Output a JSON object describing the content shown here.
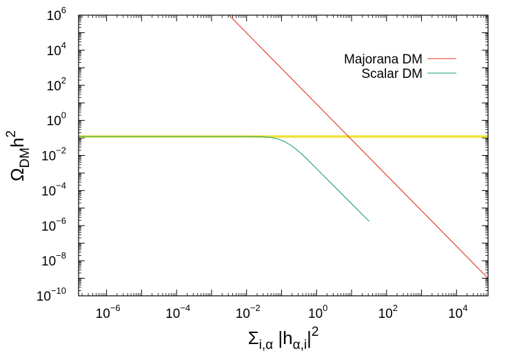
{
  "chart_data": {
    "type": "line",
    "scale": "log-log",
    "x_axis": {
      "range_log10": [
        -6.8,
        4.9
      ],
      "ticks": [
        {
          "base": "10",
          "exp": "−6",
          "log10": -6
        },
        {
          "base": "10",
          "exp": "−4",
          "log10": -4
        },
        {
          "base": "10",
          "exp": "−2",
          "log10": -2
        },
        {
          "base": "10",
          "exp": "0",
          "log10": 0
        },
        {
          "base": "10",
          "exp": "2",
          "log10": 2
        },
        {
          "base": "10",
          "exp": "4",
          "log10": 4
        }
      ],
      "label": {
        "main": "Σ",
        "sub": "i,α",
        "mid": " |h",
        "sub2": "α,i",
        "close": "|",
        "sup": "2"
      }
    },
    "y_axis": {
      "range_log10": [
        -10,
        6
      ],
      "ticks": [
        {
          "base": "10",
          "exp": "−10",
          "log10": -10
        },
        {
          "base": "10",
          "exp": "−8",
          "log10": -8
        },
        {
          "base": "10",
          "exp": "−6",
          "log10": -6
        },
        {
          "base": "10",
          "exp": "−4",
          "log10": -4
        },
        {
          "base": "10",
          "exp": "−2",
          "log10": -2
        },
        {
          "base": "10",
          "exp": "0",
          "log10": 0
        },
        {
          "base": "10",
          "exp": "2",
          "log10": 2
        },
        {
          "base": "10",
          "exp": "4",
          "log10": 4
        },
        {
          "base": "10",
          "exp": "6",
          "log10": 6
        }
      ],
      "label": {
        "main": "Ω",
        "sub": "DM",
        "mid": "h",
        "sup": "2"
      }
    },
    "series": [
      {
        "name": "Majorana DM",
        "color": "#e0301e",
        "points_log10": [
          [
            -2.5,
            6.0
          ],
          [
            4.9,
            -9.0
          ]
        ]
      },
      {
        "name": "Scalar DM",
        "color": "#1a9e77",
        "points_log10": [
          [
            -6.8,
            -0.92
          ],
          [
            -3.0,
            -0.92
          ],
          [
            -2.0,
            -0.92
          ],
          [
            -1.6,
            -0.93
          ],
          [
            -1.3,
            -0.97
          ],
          [
            -1.1,
            -1.06
          ],
          [
            -0.9,
            -1.22
          ],
          [
            -0.7,
            -1.46
          ],
          [
            -0.5,
            -1.78
          ],
          [
            -0.3,
            -2.15
          ],
          [
            0.0,
            -2.75
          ],
          [
            1.5,
            -5.75
          ]
        ]
      }
    ],
    "observed_band": {
      "color": "#f0e23a",
      "value_log10": -0.92
    }
  }
}
